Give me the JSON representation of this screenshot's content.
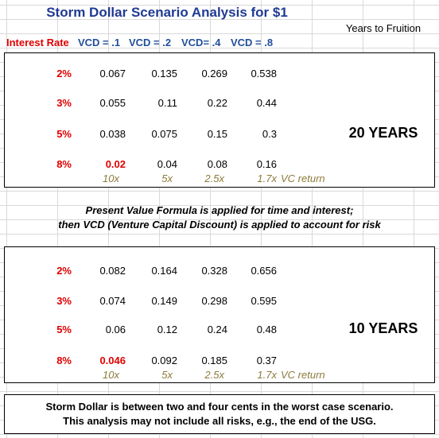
{
  "title": "Storm Dollar Scenario Analysis for $1",
  "years_header": "Years to Fruition",
  "headers": {
    "interest_rate": "Interest Rate",
    "vcd1": "VCD = .1",
    "vcd2": "VCD = .2",
    "vcd4": "VCD= .4",
    "vcd8": "VCD = .8"
  },
  "table_20": {
    "years_label": "20 YEARS",
    "rows": [
      {
        "rate": "2%",
        "v1": "0.067",
        "v2": "0.135",
        "v4": "0.269",
        "v8": "0.538"
      },
      {
        "rate": "3%",
        "v1": "0.055",
        "v2": "0.11",
        "v4": "0.22",
        "v8": "0.44"
      },
      {
        "rate": "5%",
        "v1": "0.038",
        "v2": "0.075",
        "v4": "0.15",
        "v8": "0.3"
      },
      {
        "rate": "8%",
        "v1": "0.02",
        "v2": "0.04",
        "v4": "0.08",
        "v8": "0.16"
      }
    ],
    "multipliers": {
      "m1": "10x",
      "m2": "5x",
      "m4": "2.5x",
      "m8": "1.7x",
      "label": "VC return"
    }
  },
  "note": {
    "line1": "Present Value Formula is applied for time and interest;",
    "line2": "then VCD (Venture Capital Discount) is applied to account for risk"
  },
  "table_10": {
    "years_label": "10 YEARS",
    "rows": [
      {
        "rate": "2%",
        "v1": "0.082",
        "v2": "0.164",
        "v4": "0.328",
        "v8": "0.656"
      },
      {
        "rate": "3%",
        "v1": "0.074",
        "v2": "0.149",
        "v4": "0.298",
        "v8": "0.595"
      },
      {
        "rate": "5%",
        "v1": "0.06",
        "v2": "0.12",
        "v4": "0.24",
        "v8": "0.48"
      },
      {
        "rate": "8%",
        "v1": "0.046",
        "v2": "0.092",
        "v4": "0.185",
        "v8": "0.37"
      }
    ],
    "multipliers": {
      "m1": "10x",
      "m2": "5x",
      "m4": "2.5x",
      "m8": "1.7x",
      "label": "VC return"
    }
  },
  "footer": {
    "line1": "Storm Dollar is between two and four cents in the worst case scenario.",
    "line2": "This analysis may not include all risks, e.g., the end of the USG."
  }
}
